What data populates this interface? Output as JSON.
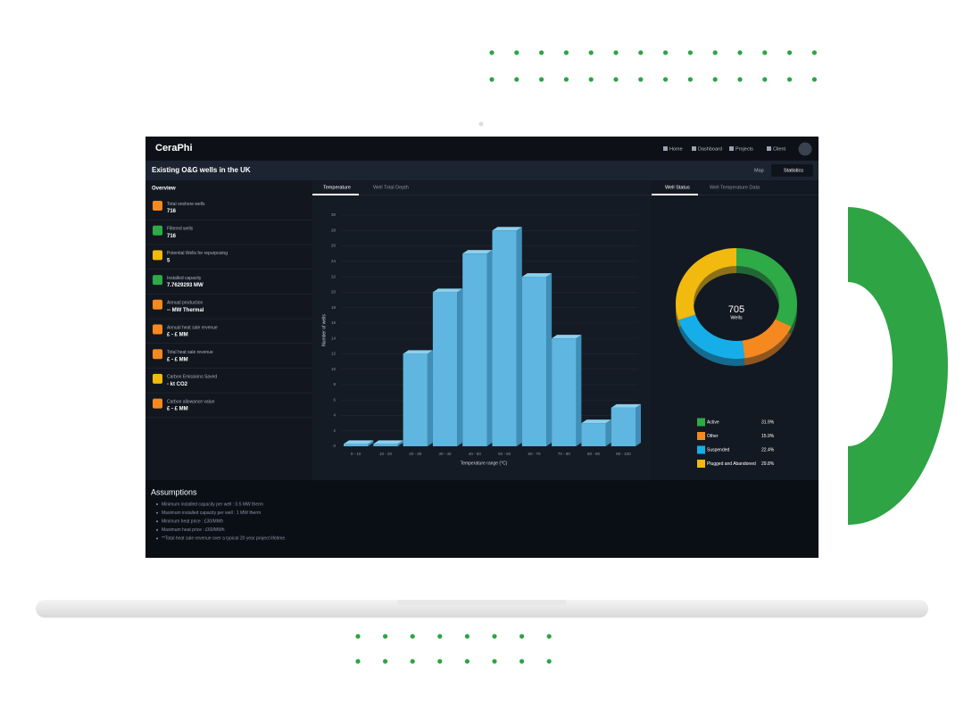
{
  "header": {
    "logo": "CeraPhi",
    "nav": [
      "Home",
      "Dashboard",
      "Projects",
      "Client"
    ]
  },
  "title_bar": {
    "title": "Existing O&G wells in the UK",
    "buttons": [
      "Map",
      "Statistics"
    ]
  },
  "overview": {
    "title": "Overview",
    "items": [
      {
        "label": "Total onshore wells",
        "value": "716"
      },
      {
        "label": "Filtered wells",
        "value": "716"
      },
      {
        "label": "Potential Wells for repurposing",
        "value": "5"
      },
      {
        "label": "Installed capacity",
        "value": "7.7629293 MW"
      },
      {
        "label": "Annual production",
        "value": "-- MW Thermal"
      },
      {
        "label": "Annual heat sale revenue",
        "value": "£ - £ MM"
      },
      {
        "label": "Total heat sale revenue",
        "value": "£ - £ MM"
      },
      {
        "label": "Carbon Emissions Saved",
        "value": "- kt CO2"
      },
      {
        "label": "Carbon allowance value",
        "value": "£ - £ MM"
      }
    ]
  },
  "tabs_left": [
    "Temperature",
    "Well Total Depth"
  ],
  "tabs_right": [
    "Well Status",
    "Well Temperature Data"
  ],
  "chart_data": [
    {
      "type": "bar",
      "x_label": "Temperature range (°C)",
      "y_label": "Number of wells",
      "categories": [
        "0 - 10",
        "10 - 20",
        "20 - 30",
        "30 - 40",
        "40 - 50",
        "50 - 60",
        "60 - 70",
        "70 - 80",
        "80 - 90",
        "90 - 100"
      ],
      "values": [
        0.3,
        0.3,
        12,
        20,
        25,
        28,
        22,
        14,
        3,
        5
      ],
      "color": "#5fb6e0",
      "ylim": [
        0,
        30
      ],
      "yticks": [
        0,
        2,
        4,
        6,
        8,
        10,
        12,
        14,
        16,
        18,
        20,
        22,
        24,
        26,
        28,
        30
      ],
      "grid": true
    },
    {
      "type": "pie",
      "center_value": 705,
      "center_label": "Wells",
      "categories": [
        "Active",
        "Other",
        "Suspended",
        "Plugged and Abandoned"
      ],
      "values": [
        31.9,
        15.9,
        22.4,
        29.8
      ],
      "value_labels": [
        "31.9%",
        "15.9%",
        "22.4%",
        "29.8%"
      ],
      "colors": [
        "#2eaa47",
        "#f5891f",
        "#16aee8",
        "#f2b90f"
      ]
    }
  ],
  "assumptions": {
    "title": "Assumptions",
    "items": [
      "Minimum installed capacity per well : 0.5 MW therm",
      "Maximum installed capacity per well : 1 MW therm",
      "Minimum heat price : £30/MWh",
      "Maximum heat price : £60/MWh",
      "**Total heat sale revenue over a typical 20 year project lifetime."
    ]
  }
}
